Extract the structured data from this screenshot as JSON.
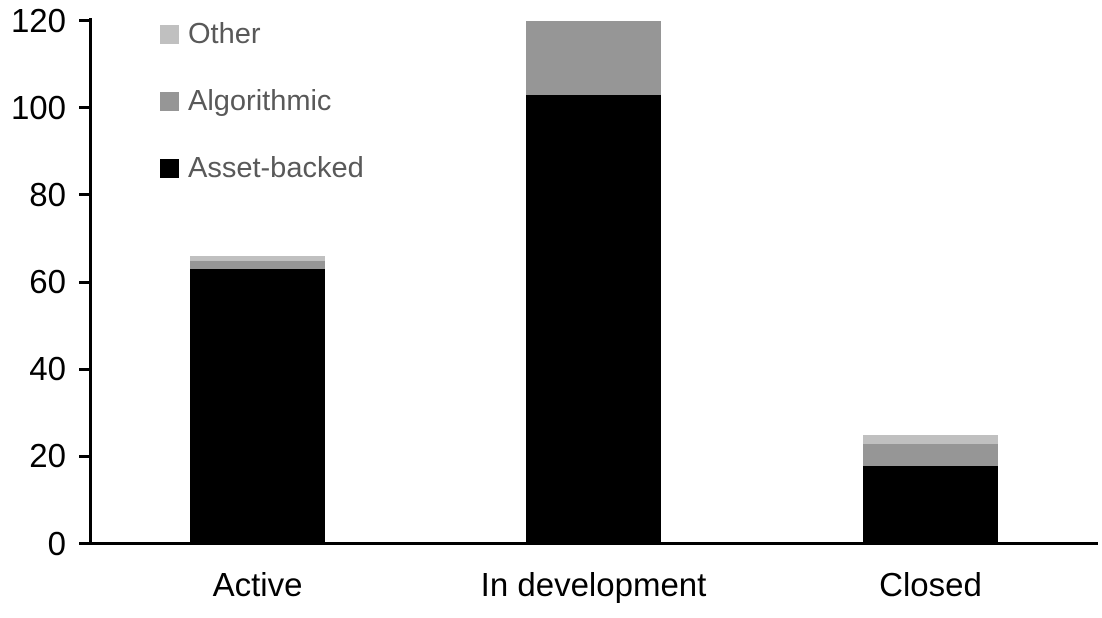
{
  "chart_data": {
    "type": "bar",
    "subtype": "stacked-vertical",
    "title": "",
    "xlabel": "",
    "ylabel": "",
    "categories": [
      "Active",
      "In development",
      "Closed"
    ],
    "series": [
      {
        "name": "Other",
        "color": "#c0c0c0",
        "values": [
          1,
          0,
          2
        ]
      },
      {
        "name": "Algorithmic",
        "color": "#969696",
        "values": [
          2,
          17,
          5
        ]
      },
      {
        "name": "Asset-backed",
        "color": "#000000",
        "values": [
          63,
          103,
          18
        ]
      }
    ],
    "totals": [
      66,
      120,
      25
    ],
    "y_ticks": [
      0,
      20,
      40,
      60,
      80,
      100,
      120
    ],
    "ylim": [
      0,
      120
    ],
    "grid": false,
    "legend_position": "top-left",
    "legend_text_color": "#595959",
    "axis_color": "#000000",
    "background_color": "#ffffff"
  }
}
